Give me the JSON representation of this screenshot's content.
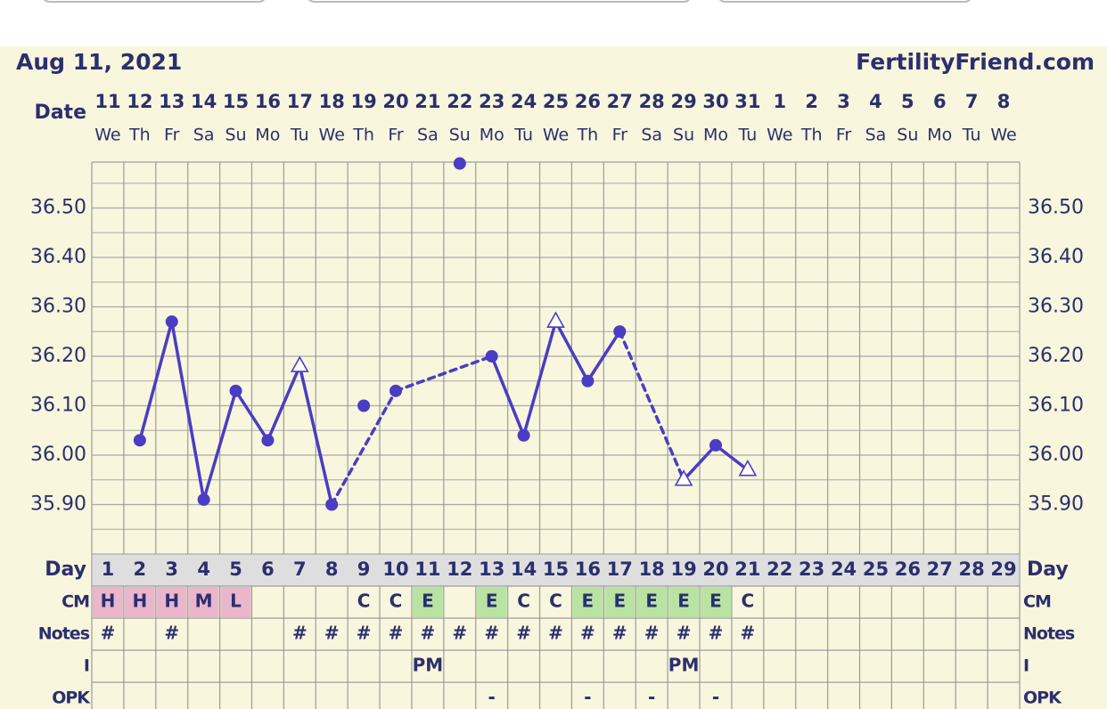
{
  "chart_data": {
    "type": "line",
    "title": "Aug 11, 2021",
    "brand": "FertilityFriend.com",
    "date_label": "Date",
    "dates": [
      11,
      12,
      13,
      14,
      15,
      16,
      17,
      18,
      19,
      20,
      21,
      22,
      23,
      24,
      25,
      26,
      27,
      28,
      29,
      30,
      31,
      1,
      2,
      3,
      4,
      5,
      6,
      7,
      8
    ],
    "weekdays": [
      "We",
      "Th",
      "Fr",
      "Sa",
      "Su",
      "Mo",
      "Tu",
      "We",
      "Th",
      "Fr",
      "Sa",
      "Su",
      "Mo",
      "Tu",
      "We",
      "Th",
      "Fr",
      "Sa",
      "Su",
      "Mo",
      "Tu",
      "We",
      "Th",
      "Fr",
      "Sa",
      "Su",
      "Mo",
      "Tu",
      "We"
    ],
    "day_label": "Day",
    "categories": [
      1,
      2,
      3,
      4,
      5,
      6,
      7,
      8,
      9,
      10,
      11,
      12,
      13,
      14,
      15,
      16,
      17,
      18,
      19,
      20,
      21,
      22,
      23,
      24,
      25,
      26,
      27,
      28,
      29
    ],
    "ylim": [
      35.8,
      36.6
    ],
    "yticks": [
      {
        "value": 35.9,
        "label": "35.90"
      },
      {
        "value": 36.0,
        "label": "36.00"
      },
      {
        "value": 36.1,
        "label": "36.10"
      },
      {
        "value": 36.2,
        "label": "36.20"
      },
      {
        "value": 36.3,
        "label": "36.30"
      },
      {
        "value": 36.4,
        "label": "36.40"
      },
      {
        "value": 36.5,
        "label": "36.50"
      }
    ],
    "grid": true,
    "series": [
      {
        "color": "#4b3cc4",
        "connected": true,
        "values": [
          null,
          36.03,
          36.27,
          35.91,
          36.13,
          36.03,
          36.18,
          35.9,
          null,
          36.13,
          null,
          null,
          36.2,
          36.04,
          36.27,
          36.15,
          36.25,
          null,
          35.95,
          36.02,
          35.97,
          null,
          null,
          null,
          null,
          null,
          null,
          null,
          null
        ],
        "markers": [
          null,
          "circle",
          "circle",
          "circle",
          "circle",
          "circle",
          "triangle",
          "circle",
          null,
          "circle",
          null,
          null,
          "circle",
          "circle",
          "triangle",
          "circle",
          "circle",
          null,
          "triangle",
          "circle",
          "triangle",
          null,
          null,
          null,
          null,
          null,
          null,
          null,
          null
        ]
      },
      {
        "color": "#4b3cc4",
        "connected": false,
        "values": [
          null,
          null,
          null,
          null,
          null,
          null,
          null,
          null,
          36.1,
          null,
          null,
          36.59,
          null,
          null,
          null,
          null,
          null,
          null,
          null,
          null,
          null,
          null,
          null,
          null,
          null,
          null,
          null,
          null,
          null
        ],
        "markers": [
          null,
          null,
          null,
          null,
          null,
          null,
          null,
          null,
          "circle",
          null,
          null,
          "circle",
          null,
          null,
          null,
          null,
          null,
          null,
          null,
          null,
          null,
          null,
          null,
          null,
          null,
          null,
          null,
          null,
          null
        ]
      }
    ],
    "rows": [
      {
        "label": "CM",
        "cells": [
          "H",
          "H",
          "H",
          "M",
          "L",
          null,
          null,
          null,
          "C",
          "C",
          "E",
          null,
          "E",
          "C",
          "C",
          "E",
          "E",
          "E",
          "E",
          "E",
          "C",
          null,
          null,
          null,
          null,
          null,
          null,
          null,
          null
        ],
        "fills": [
          "#e9b6cc",
          "#e9b6cc",
          "#e9b6cc",
          "#e9b6cc",
          "#e9b6cc",
          null,
          null,
          null,
          null,
          null,
          "#b9e3a3",
          null,
          "#b9e3a3",
          null,
          null,
          "#b9e3a3",
          "#b9e3a3",
          "#b9e3a3",
          "#b9e3a3",
          "#b9e3a3",
          null,
          null,
          null,
          null,
          null,
          null,
          null,
          null,
          null
        ]
      },
      {
        "label": "Notes",
        "cells": [
          "#",
          null,
          "#",
          null,
          null,
          null,
          "#",
          "#",
          "#",
          "#",
          "#",
          "#",
          "#",
          "#",
          "#",
          "#",
          "#",
          "#",
          "#",
          "#",
          "#",
          null,
          null,
          null,
          null,
          null,
          null,
          null,
          null
        ]
      },
      {
        "label": "I",
        "cells": [
          null,
          null,
          null,
          null,
          null,
          null,
          null,
          null,
          null,
          null,
          "PM",
          null,
          null,
          null,
          null,
          null,
          null,
          null,
          "PM",
          null,
          null,
          null,
          null,
          null,
          null,
          null,
          null,
          null,
          null
        ]
      },
      {
        "label": "OPK",
        "cells": [
          null,
          null,
          null,
          null,
          null,
          null,
          null,
          null,
          null,
          null,
          null,
          null,
          "-",
          null,
          null,
          "-",
          null,
          "-",
          null,
          "-",
          null,
          null,
          null,
          null,
          null,
          null,
          null,
          null,
          null
        ]
      }
    ]
  }
}
